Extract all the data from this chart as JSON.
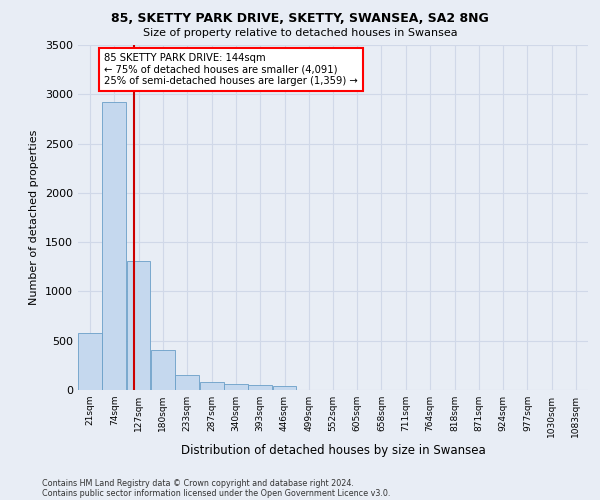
{
  "title1": "85, SKETTY PARK DRIVE, SKETTY, SWANSEA, SA2 8NG",
  "title2": "Size of property relative to detached houses in Swansea",
  "xlabel": "Distribution of detached houses by size in Swansea",
  "ylabel": "Number of detached properties",
  "footnote1": "Contains HM Land Registry data © Crown copyright and database right 2024.",
  "footnote2": "Contains public sector information licensed under the Open Government Licence v3.0.",
  "annotation_line1": "85 SKETTY PARK DRIVE: 144sqm",
  "annotation_line2": "← 75% of detached houses are smaller (4,091)",
  "annotation_line3": "25% of semi-detached houses are larger (1,359) →",
  "bar_color": "#c5d8ee",
  "bar_edge_color": "#6a9fc8",
  "red_line_color": "#cc0000",
  "background_color": "#e8edf5",
  "grid_color": "#d0d8e8",
  "categories": [
    "21sqm",
    "74sqm",
    "127sqm",
    "180sqm",
    "233sqm",
    "287sqm",
    "340sqm",
    "393sqm",
    "446sqm",
    "499sqm",
    "552sqm",
    "605sqm",
    "658sqm",
    "711sqm",
    "764sqm",
    "818sqm",
    "871sqm",
    "924sqm",
    "977sqm",
    "1030sqm",
    "1083sqm"
  ],
  "bin_edges": [
    21,
    74,
    127,
    180,
    233,
    287,
    340,
    393,
    446,
    499,
    552,
    605,
    658,
    711,
    764,
    818,
    871,
    924,
    977,
    1030,
    1083
  ],
  "bar_heights": [
    575,
    2920,
    1310,
    410,
    155,
    80,
    60,
    55,
    45,
    0,
    0,
    0,
    0,
    0,
    0,
    0,
    0,
    0,
    0,
    0
  ],
  "red_line_x": 144,
  "ylim": [
    0,
    3500
  ],
  "yticks": [
    0,
    500,
    1000,
    1500,
    2000,
    2500,
    3000,
    3500
  ]
}
